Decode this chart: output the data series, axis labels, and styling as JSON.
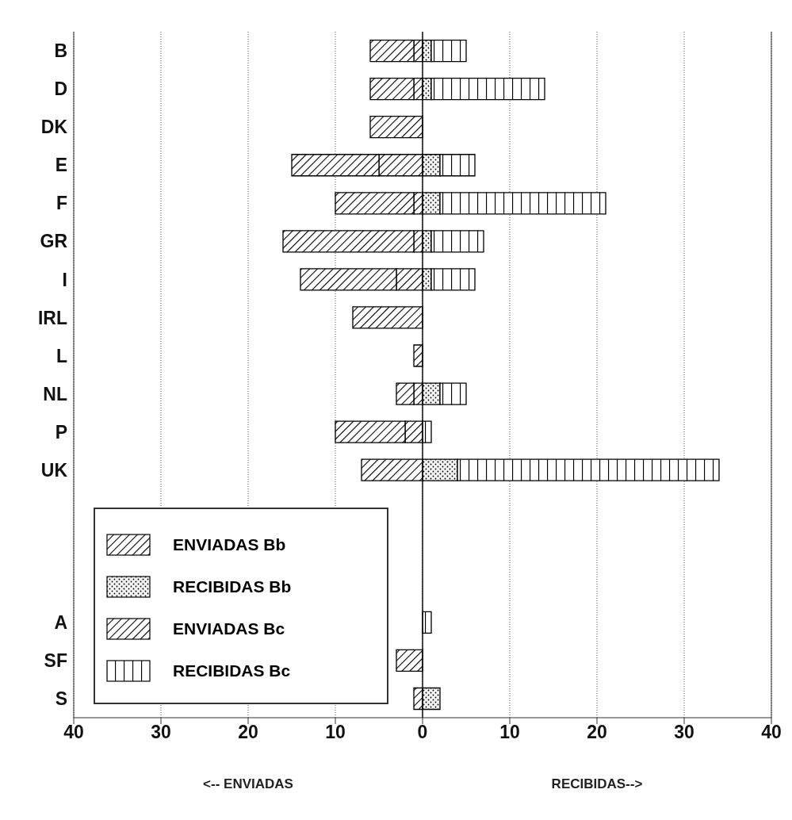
{
  "chart_data": {
    "type": "bar",
    "orientation": "horizontal",
    "stacked": true,
    "categories": [
      "B",
      "D",
      "DK",
      "E",
      "F",
      "GR",
      "I",
      "IRL",
      "L",
      "NL",
      "P",
      "UK",
      null,
      null,
      null,
      "A",
      "SF",
      "S"
    ],
    "series": [
      {
        "name": "ENVIADAS Bb",
        "color": "#000000",
        "values": [
          -1,
          -1,
          0,
          -5,
          -1,
          -1,
          -3,
          0,
          -1,
          -1,
          -2,
          0,
          0,
          0,
          0,
          0,
          0,
          -1
        ]
      },
      {
        "name": "RECIBIDAS Bb",
        "color": "#000000",
        "values": [
          1,
          1,
          0,
          2,
          2,
          1,
          1,
          0,
          0,
          2,
          0,
          4,
          0,
          0,
          0,
          0,
          0,
          2
        ]
      },
      {
        "name": "ENVIADAS Bc",
        "color": "#000000",
        "values": [
          -5,
          -5,
          -6,
          -10,
          -9,
          -15,
          -11,
          -8,
          0,
          -2,
          -8,
          -7,
          0,
          0,
          0,
          0,
          -3,
          0
        ]
      },
      {
        "name": "RECIBIDAS Bc",
        "color": "#000000",
        "values": [
          4,
          13,
          0,
          4,
          19,
          6,
          5,
          0,
          0,
          3,
          1,
          30,
          0,
          0,
          0,
          1,
          0,
          0
        ]
      }
    ],
    "xlim": [
      -40,
      40
    ],
    "xticks": [
      {
        "value": -40,
        "label": "40"
      },
      {
        "value": -30,
        "label": "30"
      },
      {
        "value": -20,
        "label": "20"
      },
      {
        "value": -10,
        "label": "10"
      },
      0,
      10,
      20,
      30,
      40
    ],
    "grid": "x",
    "legend": "bottom left",
    "annotations": [
      "<-- ENVIADAS",
      "RECIBIDAS-->"
    ]
  }
}
